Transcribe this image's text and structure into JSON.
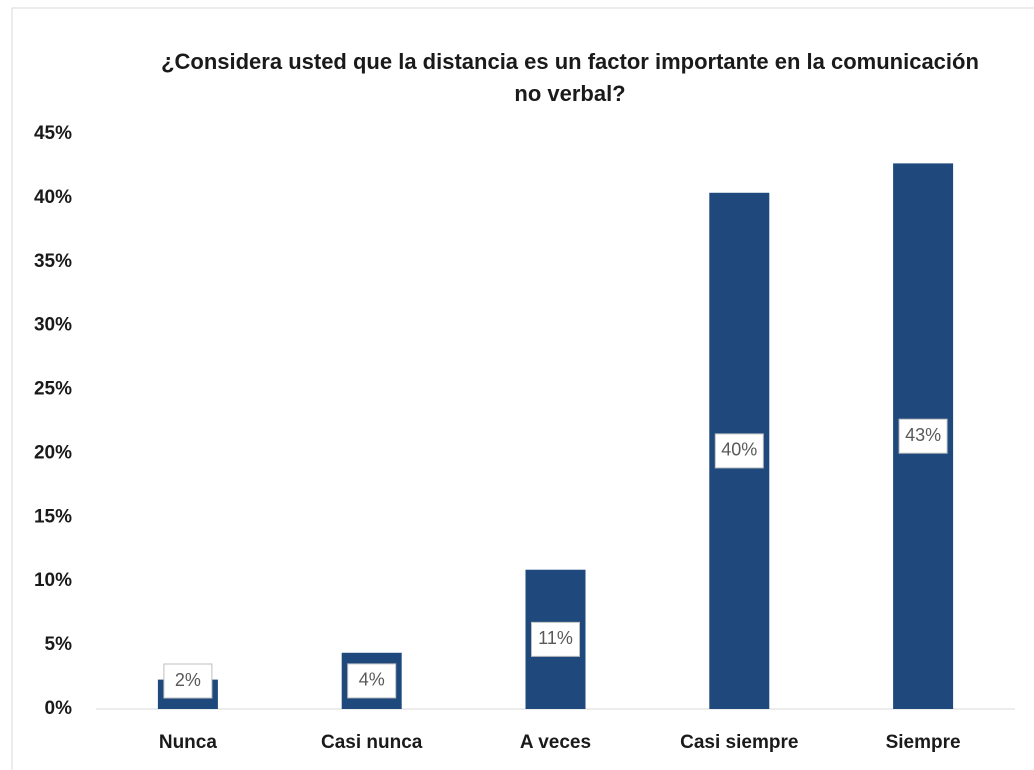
{
  "chart_data": {
    "type": "bar",
    "title": "¿Considera usted que la distancia es un factor importante en la comunicación no verbal?",
    "categories": [
      "Nunca",
      "Casi nunca",
      "A veces",
      "Casi siempre",
      "Siempre"
    ],
    "values": [
      2.3,
      4.4,
      10.9,
      40.4,
      42.7
    ],
    "value_labels": [
      "2%",
      "4%",
      "11%",
      "40%",
      "43%"
    ],
    "color": "#1f497d",
    "ylim": [
      0,
      45
    ],
    "yticks": [
      {
        "value": 0,
        "label": "0%"
      },
      {
        "value": 5,
        "label": "5%"
      },
      {
        "value": 10,
        "label": "10%"
      },
      {
        "value": 15,
        "label": "15%"
      },
      {
        "value": 20,
        "label": "20%"
      },
      {
        "value": 25,
        "label": "25%"
      },
      {
        "value": 30,
        "label": "30%"
      },
      {
        "value": 35,
        "label": "35%"
      },
      {
        "value": 40,
        "label": "40%"
      },
      {
        "value": 45,
        "label": "45%"
      }
    ],
    "grid": false
  }
}
